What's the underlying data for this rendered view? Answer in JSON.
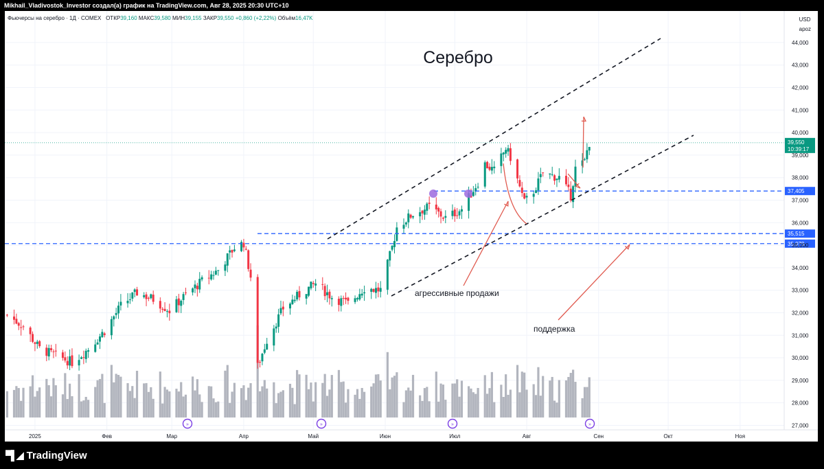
{
  "header": {
    "text": "Mikhail_Vladivostok_Investor создал(а) график на TradingView.com, Авг 28, 2025 20:30 UTC+10"
  },
  "legend": {
    "symbol": "Фьючерсы на серебро · 1Д · COMEX",
    "open_label": "ОТКР",
    "open": "39,160",
    "high_label": "МАКС",
    "high": "39,580",
    "low_label": "МИН",
    "low": "39,155",
    "close_label": "ЗАКР",
    "close": "39,550",
    "change": "+0,860 (+2,22%)",
    "volume_label": "Объём",
    "volume": "16,47K"
  },
  "currency": {
    "unit": "USD",
    "mode": "apoz"
  },
  "annotations": {
    "title": "Серебро",
    "aggressive_sales": "агрессивные продажи",
    "support": "поддержка"
  },
  "price_labels": {
    "last": "39,550",
    "countdown": "10:39:17",
    "level_1": "37,405",
    "level_2": "35,515",
    "level_3": "35,070"
  },
  "branding": {
    "logo_text": "TradingView"
  },
  "colors": {
    "up": "#089981",
    "down": "#f23645",
    "volume": "#b2b5be",
    "level": "#2962ff",
    "arrow": "#e05a4f",
    "event": "#9c6ade"
  },
  "chart_data": {
    "type": "candlestick",
    "title": "Серебро",
    "y_ticks": [
      "44,000",
      "43,000",
      "42,000",
      "41,000",
      "40,000",
      "39,000",
      "38,000",
      "37,000",
      "36,000",
      "35,000",
      "34,000",
      "33,000",
      "32,000",
      "31,000",
      "30,000",
      "29,000",
      "28,000",
      "27,000"
    ],
    "ylim": [
      26.8,
      45.4
    ],
    "x_ticks": [
      "2025",
      "Фев",
      "Мар",
      "Апр",
      "Май",
      "Июн",
      "Июл",
      "Авг",
      "Сен",
      "Окт",
      "Ноя"
    ],
    "x_range": [
      "2024-12-19",
      "2025-11-20"
    ],
    "horizontal_levels": [
      37.405,
      35.515,
      35.07
    ],
    "last_price": 39.55,
    "close_series": [
      [
        "2024-12-20",
        31.9
      ],
      [
        "2024-12-27",
        31.4
      ],
      [
        "2025-01-03",
        30.4
      ],
      [
        "2025-01-10",
        30.1
      ],
      [
        "2025-01-17",
        29.8
      ],
      [
        "2025-01-24",
        30.4
      ],
      [
        "2025-01-31",
        31.2
      ],
      [
        "2025-02-07",
        32.3
      ],
      [
        "2025-02-14",
        32.9
      ],
      [
        "2025-02-21",
        32.6
      ],
      [
        "2025-02-28",
        32.1
      ],
      [
        "2025-03-07",
        32.8
      ],
      [
        "2025-03-14",
        33.4
      ],
      [
        "2025-03-21",
        33.9
      ],
      [
        "2025-03-28",
        34.9
      ],
      [
        "2025-04-01",
        35.1
      ],
      [
        "2025-04-04",
        33.6
      ],
      [
        "2025-04-07",
        29.6
      ],
      [
        "2025-04-11",
        30.8
      ],
      [
        "2025-04-18",
        32.2
      ],
      [
        "2025-04-25",
        32.8
      ],
      [
        "2025-05-02",
        33.3
      ],
      [
        "2025-05-09",
        32.7
      ],
      [
        "2025-05-16",
        32.4
      ],
      [
        "2025-05-23",
        33.1
      ],
      [
        "2025-05-30",
        33.0
      ],
      [
        "2025-06-04",
        34.9
      ],
      [
        "2025-06-06",
        35.8
      ],
      [
        "2025-06-13",
        36.4
      ],
      [
        "2025-06-20",
        36.7
      ],
      [
        "2025-06-27",
        36.2
      ],
      [
        "2025-07-04",
        36.6
      ],
      [
        "2025-07-11",
        37.8
      ],
      [
        "2025-07-14",
        38.6
      ],
      [
        "2025-07-18",
        38.3
      ],
      [
        "2025-07-23",
        39.3
      ],
      [
        "2025-07-25",
        38.9
      ],
      [
        "2025-07-31",
        36.9
      ],
      [
        "2025-08-04",
        37.4
      ],
      [
        "2025-08-08",
        38.2
      ],
      [
        "2025-08-15",
        38.0
      ],
      [
        "2025-08-20",
        37.2
      ],
      [
        "2025-08-22",
        38.4
      ],
      [
        "2025-08-26",
        38.7
      ],
      [
        "2025-08-27",
        39.2
      ],
      [
        "2025-08-28",
        39.55
      ]
    ],
    "series": [
      {
        "name": "",
        "type": "volume"
      }
    ]
  }
}
